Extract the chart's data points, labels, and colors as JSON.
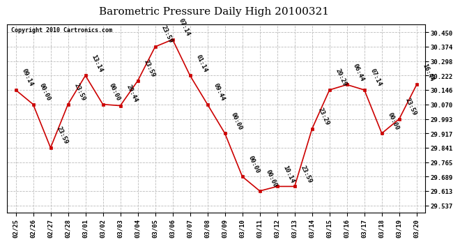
{
  "title": "Barometric Pressure Daily High 20100321",
  "copyright": "Copyright 2010 Cartronics.com",
  "dates": [
    "02/25",
    "02/26",
    "02/27",
    "02/28",
    "03/01",
    "03/02",
    "03/03",
    "03/04",
    "03/05",
    "03/06",
    "03/07",
    "03/08",
    "03/09",
    "03/10",
    "03/11",
    "03/12",
    "03/13",
    "03/14",
    "03/15",
    "03/16",
    "03/17",
    "03/18",
    "03/19",
    "03/20"
  ],
  "times": [
    "09:14",
    "00:00",
    "23:59",
    "23:59",
    "13:14",
    "00:00",
    "20:44",
    "23:59",
    "23:59",
    "07:14",
    "01:14",
    "09:44",
    "00:00",
    "00:00",
    "00:00",
    "10:14",
    "23:59",
    "23:29",
    "20:29",
    "06:44",
    "07:14",
    "00:00",
    "23:59",
    "16:44"
  ],
  "values": [
    30.146,
    30.07,
    29.841,
    30.07,
    30.222,
    30.07,
    30.063,
    30.194,
    30.374,
    30.412,
    30.222,
    30.07,
    29.917,
    29.689,
    29.613,
    29.637,
    29.637,
    29.941,
    30.146,
    30.174,
    30.146,
    29.917,
    29.993,
    30.174
  ],
  "yticks": [
    29.537,
    29.613,
    29.689,
    29.765,
    29.841,
    29.917,
    29.993,
    30.07,
    30.146,
    30.222,
    30.298,
    30.374,
    30.45
  ],
  "ylim": [
    29.497,
    30.49
  ],
  "line_color": "#cc0000",
  "marker_color": "#cc0000",
  "bg_color": "#ffffff",
  "grid_color": "#bbbbbb",
  "title_fontsize": 11,
  "label_fontsize": 6.5,
  "tick_fontsize": 6.5,
  "copyright_fontsize": 6
}
